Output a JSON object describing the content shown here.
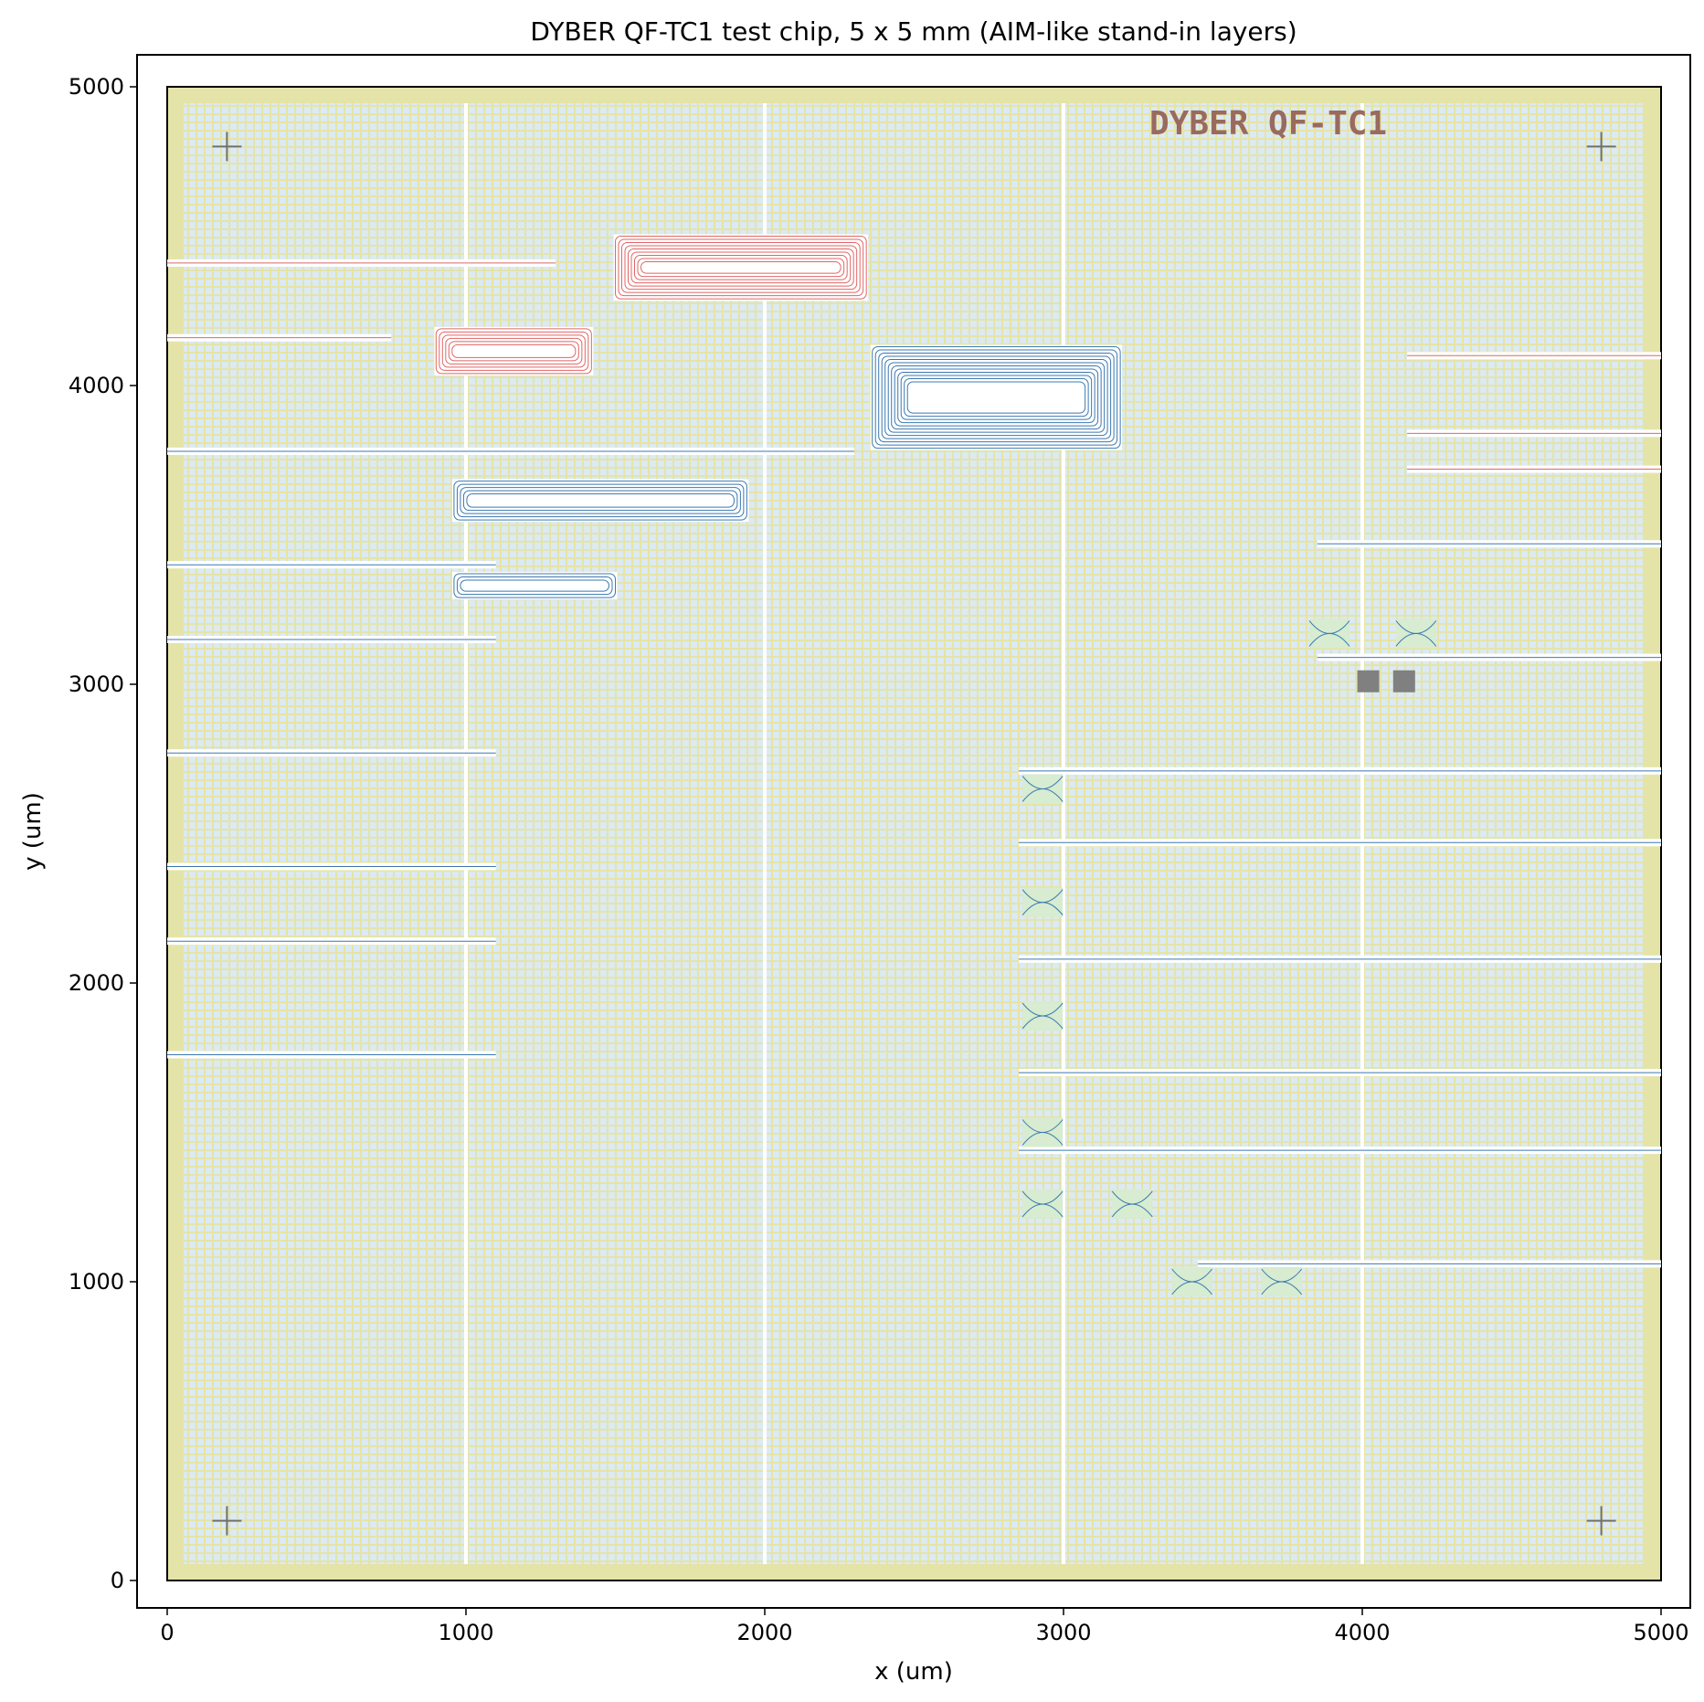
{
  "title": "DYBER QF-TC1 test chip, 5 x 5 mm (AIM-like stand-in layers)",
  "chip_label": "DYBER QF-TC1",
  "axes": {
    "xlabel": "x (um)",
    "ylabel": "y (um)",
    "xlim": [
      -100,
      5100
    ],
    "ylim": [
      -100,
      5100
    ],
    "x_ticks": [
      "0",
      "1000",
      "2000",
      "3000",
      "4000",
      "5000"
    ],
    "y_ticks": [
      "0",
      "1000",
      "2000",
      "3000",
      "4000",
      "5000"
    ]
  },
  "colors": {
    "die_border": "#d9d98a",
    "fill_pattern": "#dbeaf3",
    "red_waveguide": "#e06666",
    "blue_waveguide": "#3a78b0",
    "green_coupler": "#d7ecd0",
    "pad": "#808080",
    "marker": "#707070"
  },
  "chart_data": {
    "type": "layout",
    "die": {
      "x": [
        0,
        5000
      ],
      "y": [
        0,
        5000
      ]
    },
    "alignment_markers": [
      [
        200,
        4800
      ],
      [
        4800,
        4800
      ],
      [
        200,
        200
      ],
      [
        4800,
        200
      ]
    ],
    "red_spirals": [
      {
        "x0": 1500,
        "y0": 4290,
        "x1": 2340,
        "y1": 4500
      },
      {
        "x0": 900,
        "y0": 4040,
        "x1": 1420,
        "y1": 4190
      }
    ],
    "blue_spirals": [
      {
        "x0": 2360,
        "y0": 3790,
        "x1": 3190,
        "y1": 4130
      },
      {
        "x0": 960,
        "y0": 3550,
        "x1": 1940,
        "y1": 3680
      },
      {
        "x0": 960,
        "y0": 3290,
        "x1": 1500,
        "y1": 3370
      }
    ],
    "red_lines_y": [
      4410,
      4160,
      4100,
      3840,
      3720
    ],
    "blue_lines_y": [
      3780,
      3400,
      3150,
      2770,
      2390,
      2140,
      1760,
      3470,
      3090,
      2710,
      2470,
      2080,
      1700,
      1440,
      1060
    ],
    "couplers": [
      [
        3890,
        3170
      ],
      [
        4180,
        3170
      ],
      [
        2930,
        2650
      ],
      [
        2930,
        2270
      ],
      [
        2930,
        1890
      ],
      [
        2930,
        1500
      ],
      [
        2930,
        1260
      ],
      [
        3230,
        1260
      ],
      [
        3430,
        1000
      ],
      [
        3730,
        1000
      ]
    ],
    "pads": [
      [
        4020,
        3010
      ],
      [
        4140,
        3010
      ]
    ]
  }
}
